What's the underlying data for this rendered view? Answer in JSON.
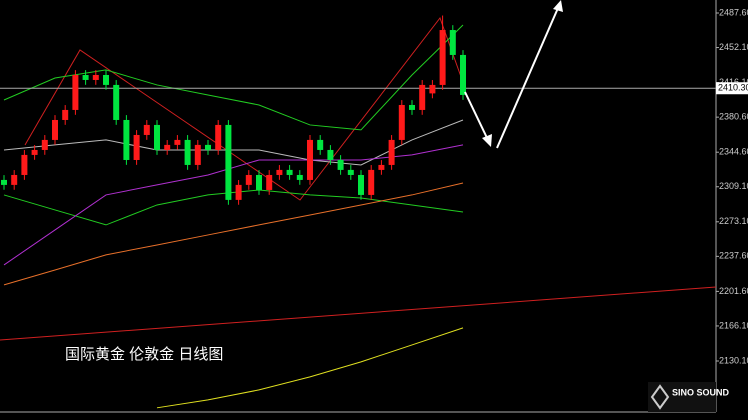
{
  "chart_data": {
    "type": "candlestick",
    "title": "国际黄金 伦敦金 日线图",
    "brand": "SINO SOUND",
    "up_color": "#ff1a1a",
    "down_color": "#00e640",
    "ylim": [
      2077.7,
      2500.95
    ],
    "yticks": [
      {
        "value": 2487.6,
        "label": "2487.60"
      },
      {
        "value": 2452.1,
        "label": "2452.10"
      },
      {
        "value": 2416.1,
        "label": "2416.10"
      },
      {
        "value": 2380.6,
        "label": "2380.60"
      },
      {
        "value": 2344.6,
        "label": "2344.60"
      },
      {
        "value": 2309.1,
        "label": "2309.10"
      },
      {
        "value": 2273.1,
        "label": "2273.10"
      },
      {
        "value": 2237.6,
        "label": "2237.60"
      },
      {
        "value": 2201.6,
        "label": "2201.60"
      },
      {
        "value": 2166.1,
        "label": "2166.10"
      },
      {
        "value": 2130.1,
        "label": "2130.10"
      }
    ],
    "price_line": {
      "value": 2410.3,
      "label": "2410.30"
    },
    "open": [
      2316.1,
      2311.0,
      2321.2,
      2341.8,
      2346.9,
      2357.2,
      2377.7,
      2388.0,
      2423.9,
      2418.8,
      2423.9,
      2413.7,
      2377.7,
      2336.6,
      2362.3,
      2372.6,
      2346.9,
      2352.1,
      2357.2,
      2331.5,
      2352.1,
      2346.9,
      2372.6,
      2295.6,
      2311.0,
      2321.2,
      2305.8,
      2321.2,
      2326.4,
      2321.2,
      2316.1,
      2357.2,
      2346.9,
      2336.6,
      2326.4,
      2321.2,
      2300.7,
      2326.4,
      2331.5,
      2357.2,
      2393.1,
      2388.0,
      2405.0,
      2413.7,
      2470.1,
      2444.5
    ],
    "high": [
      2321.1,
      2326.2,
      2346.8,
      2351.9,
      2362.2,
      2382.7,
      2393.0,
      2428.9,
      2428.9,
      2428.9,
      2428.9,
      2418.7,
      2382.7,
      2367.3,
      2377.6,
      2377.6,
      2357.1,
      2362.2,
      2362.2,
      2357.1,
      2357.1,
      2377.6,
      2377.6,
      2316.0,
      2326.2,
      2326.2,
      2326.2,
      2331.4,
      2331.4,
      2326.2,
      2362.2,
      2362.2,
      2351.9,
      2341.6,
      2331.4,
      2326.2,
      2331.4,
      2336.5,
      2362.2,
      2398.1,
      2398.1,
      2418.7,
      2418.7,
      2485.0,
      2475.1,
      2449.5
    ],
    "low": [
      2306.0,
      2306.0,
      2316.2,
      2336.8,
      2341.9,
      2352.2,
      2372.7,
      2383.0,
      2413.8,
      2413.8,
      2408.7,
      2372.7,
      2331.6,
      2331.6,
      2357.3,
      2341.9,
      2341.9,
      2347.1,
      2326.5,
      2326.5,
      2341.9,
      2341.9,
      2290.6,
      2290.6,
      2306.0,
      2300.8,
      2300.8,
      2316.2,
      2316.2,
      2311.1,
      2311.1,
      2341.9,
      2331.6,
      2321.4,
      2316.2,
      2295.7,
      2295.7,
      2321.4,
      2326.5,
      2352.2,
      2383.0,
      2383.0,
      2400.0,
      2408.7,
      2439.5,
      2398.4
    ],
    "close": [
      2311.0,
      2321.2,
      2341.8,
      2346.9,
      2357.2,
      2377.7,
      2388.0,
      2423.9,
      2418.8,
      2423.9,
      2413.7,
      2377.7,
      2336.6,
      2362.3,
      2372.6,
      2346.9,
      2352.1,
      2357.2,
      2331.5,
      2352.1,
      2346.9,
      2372.6,
      2295.6,
      2311.0,
      2321.2,
      2305.8,
      2321.2,
      2326.4,
      2321.2,
      2316.1,
      2357.2,
      2346.9,
      2336.6,
      2326.4,
      2321.2,
      2300.7,
      2326.4,
      2331.5,
      2357.2,
      2393.1,
      2388.0,
      2413.7,
      2413.7,
      2470.1,
      2444.5,
      2403.4
    ],
    "overlays": [
      {
        "color": "#22cc22",
        "x": [
          0,
          5,
          10,
          15,
          20,
          25,
          30,
          35,
          40,
          45
        ],
        "values": [
          2398.2,
          2420.8,
          2429.1,
          2413.7,
          2403.4,
          2393.1,
          2372.6,
          2367.5,
          2423.9,
          2475.3
        ]
      },
      {
        "color": "#bbbbbb",
        "x": [
          0,
          5,
          10,
          15,
          20,
          25,
          30,
          35,
          40,
          45
        ],
        "values": [
          2346.9,
          2352.1,
          2357.2,
          2346.9,
          2346.9,
          2346.9,
          2336.6,
          2331.5,
          2357.2,
          2377.7
        ]
      },
      {
        "color": "#22cc22",
        "x": [
          0,
          5,
          10,
          15,
          20,
          25,
          30,
          35,
          40,
          45
        ],
        "values": [
          2300.7,
          2285.3,
          2269.9,
          2290.4,
          2300.7,
          2305.8,
          2300.7,
          2297.6,
          2290.4,
          2283.2
        ]
      },
      {
        "color": "#b030d0",
        "x": [
          0,
          5,
          10,
          15,
          20,
          25,
          30,
          35,
          40,
          45
        ],
        "values": [
          2228.8,
          2264.7,
          2300.7,
          2311.0,
          2321.2,
          2336.6,
          2336.6,
          2336.6,
          2341.8,
          2352.1
        ]
      },
      {
        "color": "#e8702a",
        "x": [
          0,
          5,
          10,
          15,
          20,
          25,
          30,
          35,
          40,
          45
        ],
        "values": [
          2208.3,
          2223.6,
          2239.1,
          2249.3,
          2259.6,
          2269.9,
          2280.1,
          2290.4,
          2300.7,
          2313.0
        ]
      },
      {
        "color": "#e0e020",
        "x": [
          15,
          20,
          25,
          30,
          35,
          40,
          45
        ],
        "values": [
          2082.0,
          2090.2,
          2100.4,
          2113.8,
          2129.2,
          2146.6,
          2164.1
        ]
      }
    ]
  }
}
